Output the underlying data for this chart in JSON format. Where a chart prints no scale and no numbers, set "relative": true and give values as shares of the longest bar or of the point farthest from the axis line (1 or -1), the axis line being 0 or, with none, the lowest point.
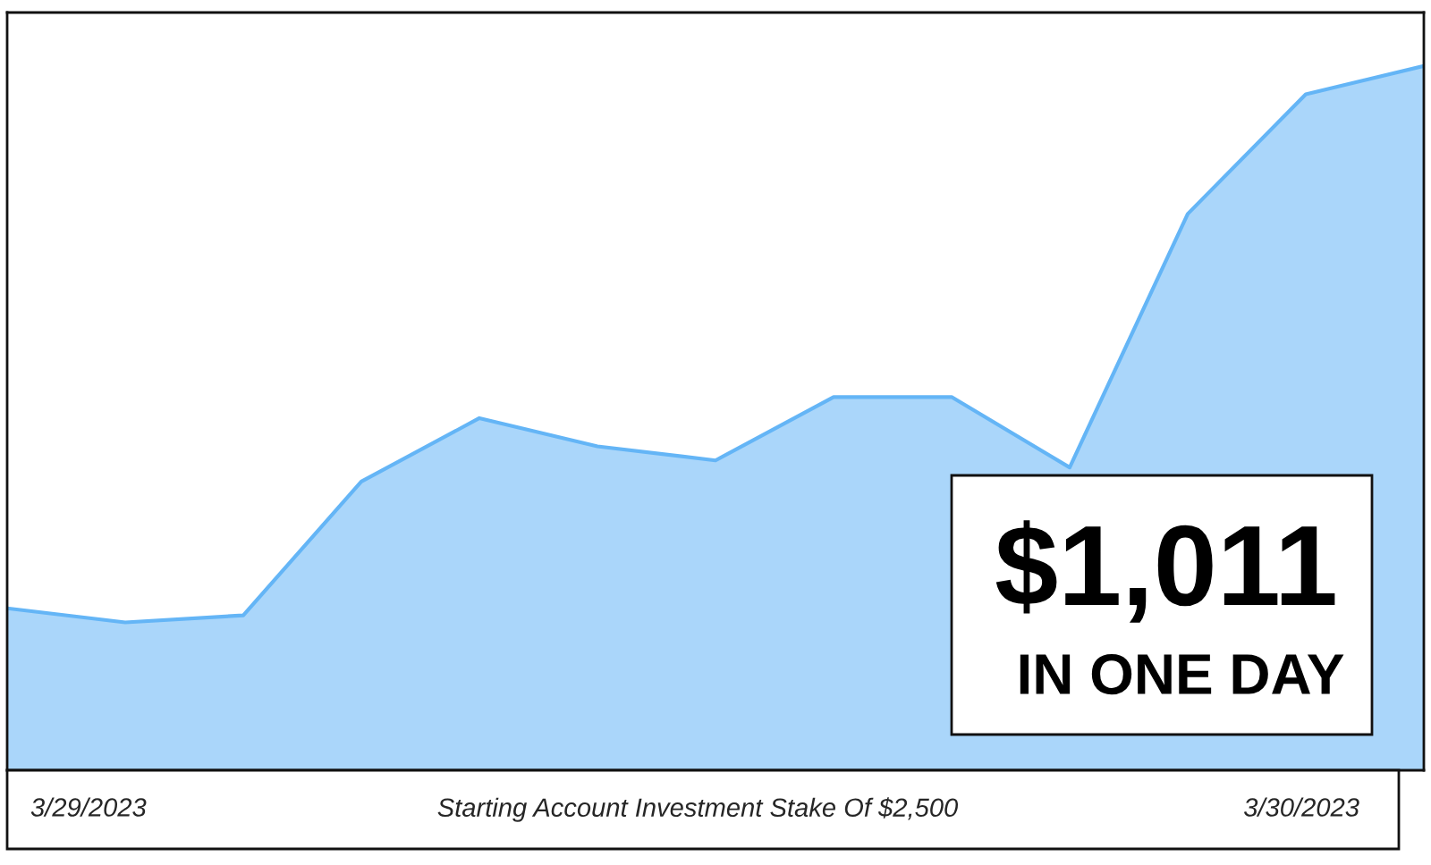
{
  "chart_data": {
    "type": "area",
    "relative": true,
    "categories": [
      null,
      null,
      null,
      null,
      null,
      null,
      null,
      null,
      null,
      null,
      null,
      null,
      null
    ],
    "series": [
      {
        "color": "#64b5f6",
        "values": [
          0.23,
          0.21,
          0.22,
          0.41,
          0.5,
          0.46,
          0.44,
          0.53,
          0.53,
          0.43,
          0.79,
          0.96,
          1
        ]
      }
    ],
    "annotations": [
      "$1,011",
      "IN ONE DAY",
      "3/29/2023",
      "Starting Account Investment Stake Of $2,500",
      "3/30/2023"
    ]
  }
}
